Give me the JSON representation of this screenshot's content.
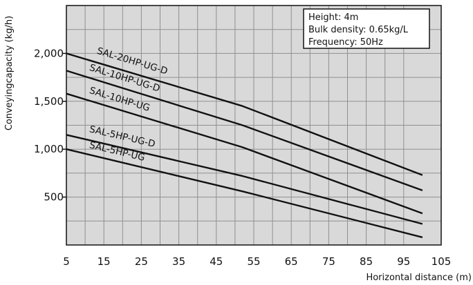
{
  "chart_data": {
    "type": "line",
    "title": "",
    "xlabel": "Horizontal distance (m)",
    "ylabel": "Conveyingcapacity (kg/h)",
    "xlim": [
      5,
      105
    ],
    "ylim": [
      0,
      2500
    ],
    "x_ticks": [
      "5",
      "15",
      "25",
      "35",
      "45",
      "55",
      "65",
      "75",
      "85",
      "95",
      "105"
    ],
    "y_ticks": [
      {
        "value": 500,
        "label": "500"
      },
      {
        "value": 1000,
        "label": "1,000"
      },
      {
        "value": 1500,
        "label": "1,500"
      },
      {
        "value": 2000,
        "label": "2,000"
      }
    ],
    "grid": true,
    "series": [
      {
        "name": "SAL-20HP-UG-D",
        "x": [
          5,
          52,
          100
        ],
        "y": [
          2000,
          1450,
          730
        ]
      },
      {
        "name": "SAL-10HP-UG-D",
        "x": [
          5,
          52,
          100
        ],
        "y": [
          1820,
          1250,
          570
        ]
      },
      {
        "name": "SAL-10HP-UG",
        "x": [
          5,
          52,
          100
        ],
        "y": [
          1580,
          1020,
          330
        ]
      },
      {
        "name": "SAL-5HP-UG-D",
        "x": [
          5,
          52,
          100
        ],
        "y": [
          1150,
          720,
          220
        ]
      },
      {
        "name": "SAL-5HP-UG",
        "x": [
          5,
          52,
          100
        ],
        "y": [
          1000,
          560,
          80
        ]
      }
    ],
    "annotations": [
      "Height: 4m",
      "Bulk density: 0.65kg/L",
      "Frequency: 50Hz"
    ],
    "colors": {
      "plot_bg": "#d9d9d9",
      "grid": "#8f8f8f",
      "line": "#111111",
      "box_bg": "#ffffff"
    }
  }
}
